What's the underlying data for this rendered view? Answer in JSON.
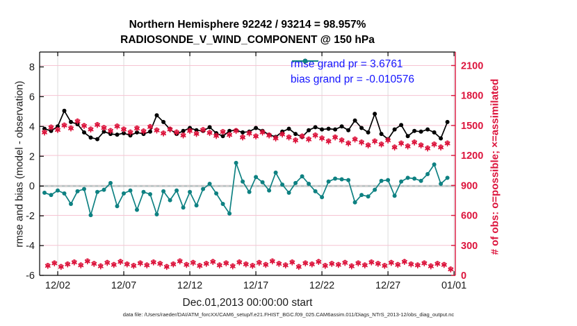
{
  "title_line1": "Northern Hemisphere 92242 / 93214 = 98.957%",
  "title_line2": "RADIOSONDE_V_WIND_COMPONENT @ 150 hPa",
  "footer": "data file: /Users/raeder/DAI/ATM_forcXX/CAM6_setup/f.e21.FHIST_BGC.f09_025.CAM6assim.011/Diags_NTrS_2013-12/obs_diag_output.nc",
  "colors": {
    "rmse": "#000000",
    "bias": "#0e8182",
    "obs": "#dc143c",
    "legend_text": "#1414ff",
    "vgrid": "#dcdcdc",
    "hgrid_pink": "#f6c3d2",
    "zero_gray": "#c9c9c9",
    "axis_black": "#000000"
  },
  "legend": [
    {
      "label": "rmse grand pr = 3.6761",
      "series": "rmse"
    },
    {
      "label": "bias grand pr = -0.010576",
      "series": "bias"
    }
  ],
  "chart_data": {
    "type": "line",
    "title": "Northern Hemisphere 92242 / 93214 = 98.957% | RADIOSONDE_V_WIND_COMPONENT @ 150 hPa",
    "xlabel": "Dec.01,2013 00:00:00 start",
    "ylabel_left": "rmse and bias (model - observation)",
    "ylabel_right": "# of obs: o=possible; ×=assimilated",
    "xlim_days": [
      -0.37,
      31.1
    ],
    "ylim_left": [
      -6,
      9
    ],
    "ylim_right": [
      0,
      2235
    ],
    "xticks": {
      "days": [
        1,
        6,
        11,
        16,
        21,
        26,
        31
      ],
      "labels": [
        "12/02",
        "12/07",
        "12/12",
        "12/17",
        "12/22",
        "12/27",
        "01/01"
      ]
    },
    "yticks_left": [
      -6,
      -4,
      -2,
      0,
      2,
      4,
      6,
      8
    ],
    "yticks_right": [
      0,
      300,
      600,
      900,
      1200,
      1500,
      1800,
      2100
    ],
    "grid": {
      "vertical": true,
      "horizontal_right_axis": true,
      "zero_line": true
    },
    "legend_position": "top-right-inside",
    "series": [
      {
        "name": "rmse",
        "axis": "left",
        "marker": "dot",
        "line": true,
        "x_start": 0,
        "x_step": 0.5,
        "values": [
          3.85,
          3.7,
          4.0,
          5.05,
          4.3,
          4.15,
          3.6,
          3.25,
          3.15,
          3.65,
          3.5,
          3.45,
          3.55,
          3.4,
          3.6,
          3.5,
          3.65,
          4.75,
          4.3,
          3.8,
          3.5,
          3.7,
          3.9,
          3.75,
          3.7,
          3.95,
          3.55,
          3.35,
          3.7,
          3.75,
          3.6,
          3.65,
          3.9,
          3.7,
          3.45,
          3.3,
          3.65,
          3.85,
          3.5,
          3.3,
          3.75,
          3.95,
          3.8,
          3.85,
          3.8,
          4.0,
          3.75,
          4.4,
          3.9,
          3.6,
          4.85,
          3.5,
          3.15,
          3.8,
          4.1,
          3.35,
          3.7,
          3.65,
          3.8,
          3.6,
          3.2,
          4.3
        ]
      },
      {
        "name": "bias",
        "axis": "left",
        "marker": "dot",
        "line": true,
        "x_start": 0,
        "x_step": 0.5,
        "values": [
          -0.45,
          -0.6,
          -0.3,
          -0.5,
          -1.2,
          -0.35,
          -0.2,
          -1.95,
          -0.4,
          -0.25,
          0.2,
          -1.35,
          -0.5,
          -0.3,
          -1.6,
          -0.4,
          -0.55,
          -1.9,
          -0.35,
          -0.95,
          -0.3,
          -1.45,
          -0.4,
          -1.3,
          -0.2,
          0.15,
          -0.5,
          -1.2,
          -1.85,
          1.55,
          0.3,
          -0.4,
          0.6,
          0.25,
          -0.3,
          0.9,
          0.1,
          -0.45,
          0.2,
          0.65,
          0.15,
          -0.35,
          -0.75,
          0.3,
          0.5,
          0.45,
          0.4,
          -1.1,
          -0.6,
          -0.7,
          -0.25,
          0.35,
          0.4,
          -0.65,
          0.3,
          0.55,
          0.5,
          0.35,
          0.8,
          1.45,
          0.15,
          0.55
        ]
      },
      {
        "name": "obs-assimilated-00z12z",
        "axis": "right",
        "marker": "asterisk-circle",
        "line": false,
        "x_start": 0,
        "x_step": 0.5,
        "values": [
          1430,
          1480,
          1455,
          1500,
          1470,
          1540,
          1495,
          1460,
          1505,
          1475,
          1445,
          1490,
          1460,
          1430,
          1470,
          1440,
          1485,
          1450,
          1420,
          1460,
          1430,
          1400,
          1445,
          1415,
          1455,
          1425,
          1395,
          1435,
          1405,
          1445,
          1380,
          1420,
          1390,
          1430,
          1400,
          1370,
          1410,
          1380,
          1350,
          1390,
          1360,
          1400,
          1370,
          1340,
          1380,
          1350,
          1320,
          1360,
          1330,
          1300,
          1340,
          1310,
          1350,
          1280,
          1320,
          1290,
          1330,
          1300,
          1270,
          1310,
          1280,
          1320
        ]
      },
      {
        "name": "obs-assimilated-06z18z",
        "axis": "right",
        "marker": "asterisk-circle",
        "line": false,
        "x_start": 0.25,
        "x_step": 0.5,
        "values": [
          95,
          120,
          85,
          110,
          130,
          100,
          140,
          115,
          90,
          125,
          105,
          135,
          110,
          95,
          120,
          100,
          130,
          115,
          85,
          110,
          140,
          105,
          125,
          95,
          115,
          135,
          100,
          120,
          90,
          130,
          110,
          95,
          125,
          105,
          140,
          115,
          100,
          130,
          85,
          120,
          110,
          135,
          95,
          115,
          105,
          125,
          90,
          120,
          100,
          130,
          115,
          95,
          125,
          105,
          135,
          110,
          100,
          120,
          90,
          115,
          105,
          60
        ]
      }
    ]
  }
}
